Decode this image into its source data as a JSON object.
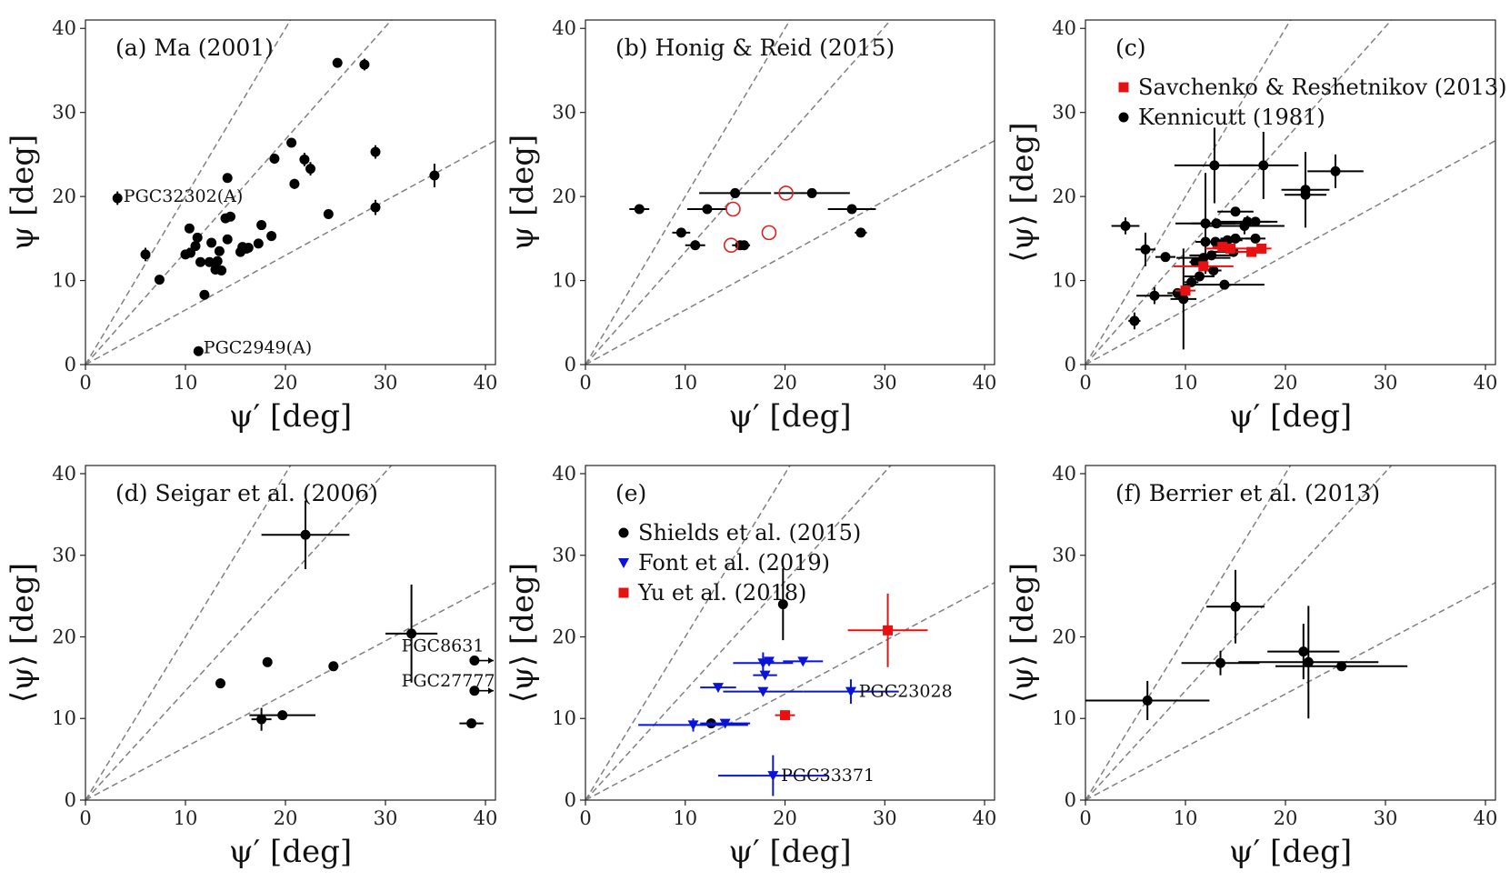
{
  "figure": {
    "xlabel": "ψ′ [deg]",
    "reference_lines": "dashed gray lines through the origin"
  },
  "chart_data": [
    {
      "type": "scatter",
      "title": "(a) Ma (2001)",
      "xlabel": "ψ′ [deg]",
      "ylabel": "ψ [deg]",
      "xlim": [
        0,
        41
      ],
      "ylim": [
        0,
        41
      ],
      "xticks": [
        0,
        10,
        20,
        30,
        40
      ],
      "yticks": [
        0,
        10,
        20,
        30,
        40
      ],
      "ref_slopes": [
        2.0,
        1.34,
        0.65
      ],
      "series": [
        {
          "name": "Ma (2001)",
          "color": "#000000",
          "marker": "circle",
          "points": [
            {
              "x": 3.2,
              "y": 19.8,
              "yerr": 0.8
            },
            {
              "x": 6.0,
              "y": 13.1,
              "yerr": 0.8
            },
            {
              "x": 7.4,
              "y": 10.1
            },
            {
              "x": 10.0,
              "y": 13.1
            },
            {
              "x": 10.4,
              "y": 16.2
            },
            {
              "x": 10.5,
              "y": 13.3
            },
            {
              "x": 11.0,
              "y": 14.1
            },
            {
              "x": 11.2,
              "y": 15.1
            },
            {
              "x": 11.5,
              "y": 12.2
            },
            {
              "x": 11.3,
              "y": 1.6
            },
            {
              "x": 11.9,
              "y": 8.3
            },
            {
              "x": 12.4,
              "y": 12.2
            },
            {
              "x": 12.6,
              "y": 14.5
            },
            {
              "x": 13.0,
              "y": 11.3
            },
            {
              "x": 13.2,
              "y": 12.3
            },
            {
              "x": 13.4,
              "y": 13.5
            },
            {
              "x": 13.6,
              "y": 11.2
            },
            {
              "x": 14.0,
              "y": 17.4
            },
            {
              "x": 14.2,
              "y": 22.2
            },
            {
              "x": 14.2,
              "y": 14.9
            },
            {
              "x": 14.5,
              "y": 17.6
            },
            {
              "x": 15.5,
              "y": 13.4
            },
            {
              "x": 15.7,
              "y": 14.0
            },
            {
              "x": 16.1,
              "y": 13.8
            },
            {
              "x": 16.3,
              "y": 13.9
            },
            {
              "x": 17.3,
              "y": 14.4
            },
            {
              "x": 17.6,
              "y": 16.6
            },
            {
              "x": 18.6,
              "y": 15.3,
              "yerr": 0.6
            },
            {
              "x": 18.9,
              "y": 24.5,
              "yerr": 0.6
            },
            {
              "x": 20.6,
              "y": 26.4
            },
            {
              "x": 20.9,
              "y": 21.5,
              "yerr": 0.6
            },
            {
              "x": 21.9,
              "y": 24.4,
              "yerr": 0.8
            },
            {
              "x": 22.5,
              "y": 23.3,
              "yerr": 0.8
            },
            {
              "x": 24.3,
              "y": 17.9
            },
            {
              "x": 25.2,
              "y": 35.9
            },
            {
              "x": 27.9,
              "y": 35.7,
              "yerr": 0.7
            },
            {
              "x": 29.0,
              "y": 25.3,
              "yerr": 0.8
            },
            {
              "x": 29.0,
              "y": 18.7,
              "yerr": 0.9
            },
            {
              "x": 34.9,
              "y": 22.5,
              "yerr": 1.4
            }
          ]
        }
      ],
      "annotations": [
        {
          "text": "PGC32302(A)",
          "x": 3.8,
          "y": 20.1
        },
        {
          "text": "PGC2949(A)",
          "x": 11.8,
          "y": 2.1
        }
      ]
    },
    {
      "type": "scatter",
      "title": "(b) Honig & Reid (2015)",
      "xlabel": "ψ′ [deg]",
      "ylabel": "ψ [deg]",
      "xlim": [
        0,
        41
      ],
      "ylim": [
        0,
        41
      ],
      "xticks": [
        0,
        10,
        20,
        30,
        40
      ],
      "yticks": [
        0,
        10,
        20,
        30,
        40
      ],
      "ref_slopes": [
        2.0,
        1.34,
        0.65
      ],
      "series": [
        {
          "name": "filled",
          "color": "#000000",
          "marker": "circle",
          "points": [
            {
              "x": 5.4,
              "y": 18.5,
              "xerr": 1.0
            },
            {
              "x": 9.6,
              "y": 15.7,
              "xerr": 0.9
            },
            {
              "x": 11.0,
              "y": 14.2,
              "xerr": 1.0
            },
            {
              "x": 12.2,
              "y": 18.5,
              "xerr": 2.0
            },
            {
              "x": 15.0,
              "y": 20.4,
              "xerr": 3.6
            },
            {
              "x": 15.5,
              "y": 14.2,
              "xerr": 0.8
            },
            {
              "x": 15.9,
              "y": 14.2,
              "xerr": 0.6
            },
            {
              "x": 22.7,
              "y": 20.4,
              "xerr": 3.8
            },
            {
              "x": 26.7,
              "y": 18.5,
              "xerr": 2.4
            },
            {
              "x": 27.6,
              "y": 15.7,
              "xerr": 0.6
            }
          ]
        },
        {
          "name": "open",
          "color": "#e02020",
          "marker": "open-circle",
          "points": [
            {
              "x": 14.6,
              "y": 14.2
            },
            {
              "x": 14.8,
              "y": 18.5
            },
            {
              "x": 18.4,
              "y": 15.7
            },
            {
              "x": 20.1,
              "y": 20.4
            }
          ]
        }
      ],
      "annotations": []
    },
    {
      "type": "scatter",
      "title": "(c)",
      "xlabel": "ψ′ [deg]",
      "ylabel": "⟨ψ⟩ [deg]",
      "xlim": [
        0,
        41
      ],
      "ylim": [
        0,
        41
      ],
      "xticks": [
        0,
        10,
        20,
        30,
        40
      ],
      "yticks": [
        0,
        10,
        20,
        30,
        40
      ],
      "ref_slopes": [
        2.0,
        1.34,
        0.65
      ],
      "legend": [
        {
          "label": "Savchenko & Reshetnikov (2013)",
          "color": "#e81010",
          "marker": "square"
        },
        {
          "label": "Kennicutt (1981)",
          "color": "#000000",
          "marker": "circle"
        }
      ],
      "series": [
        {
          "name": "Kennicutt (1981)",
          "color": "#000000",
          "marker": "circle",
          "points": [
            {
              "x": 4.0,
              "y": 16.5,
              "xerr": 1.4,
              "yerr": 1.0
            },
            {
              "x": 4.9,
              "y": 5.2,
              "xerr": 0.6,
              "yerr": 1.0
            },
            {
              "x": 6.0,
              "y": 13.7,
              "xerr": 1.0,
              "yerr": 2.0
            },
            {
              "x": 6.9,
              "y": 8.2,
              "xerr": 1.8,
              "yerr": 1.0
            },
            {
              "x": 8.0,
              "y": 12.8,
              "xerr": 1.0
            },
            {
              "x": 9.2,
              "y": 8.5,
              "xerr": 1.0
            },
            {
              "x": 9.8,
              "y": 7.8,
              "xerr": 1.3,
              "yerr": 6.0
            },
            {
              "x": 10.6,
              "y": 9.8,
              "xerr": 0.7
            },
            {
              "x": 11.0,
              "y": 12.2,
              "xerr": 0.6
            },
            {
              "x": 11.4,
              "y": 10.5,
              "xerr": 1.5
            },
            {
              "x": 11.8,
              "y": 12.7,
              "xerr": 2.7
            },
            {
              "x": 12.0,
              "y": 14.6,
              "xerr": 1.0
            },
            {
              "x": 12.0,
              "y": 16.8,
              "xerr": 3.0,
              "yerr": 6.0
            },
            {
              "x": 12.6,
              "y": 13.0,
              "xerr": 2.2
            },
            {
              "x": 12.8,
              "y": 11.2,
              "xerr": 0.8
            },
            {
              "x": 12.9,
              "y": 23.7,
              "xerr": 4.0,
              "yerr": 4.5
            },
            {
              "x": 13.0,
              "y": 14.6,
              "xerr": 2.0
            },
            {
              "x": 13.1,
              "y": 16.8,
              "xerr": 2.5
            },
            {
              "x": 13.9,
              "y": 9.5,
              "xerr": 4.0
            },
            {
              "x": 14.2,
              "y": 14.8,
              "xerr": 1.5
            },
            {
              "x": 14.8,
              "y": 13.4,
              "xerr": 2.5
            },
            {
              "x": 15.0,
              "y": 18.2,
              "xerr": 1.8
            },
            {
              "x": 15.0,
              "y": 15.0,
              "xerr": 1.5
            },
            {
              "x": 15.9,
              "y": 16.5,
              "xerr": 4.0,
              "yerr": 1.0
            },
            {
              "x": 16.2,
              "y": 17.0,
              "xerr": 3.0,
              "yerr": 0.7
            },
            {
              "x": 17.0,
              "y": 17.0,
              "xerr": 1.5
            },
            {
              "x": 17.0,
              "y": 15.0,
              "xerr": 1.0
            },
            {
              "x": 17.8,
              "y": 23.7,
              "xerr": 3.5,
              "yerr": 4.0
            },
            {
              "x": 22.0,
              "y": 20.8,
              "xerr": 2.4,
              "yerr": 4.5
            },
            {
              "x": 22.0,
              "y": 20.2,
              "xerr": 2.1,
              "yerr": 3.8
            },
            {
              "x": 25.0,
              "y": 23.0,
              "xerr": 2.8,
              "yerr": 2.0
            }
          ]
        },
        {
          "name": "Savchenko & Reshetnikov (2013)",
          "color": "#e81010",
          "marker": "square",
          "points": [
            {
              "x": 10.0,
              "y": 8.8,
              "xerr": 1.0
            },
            {
              "x": 11.8,
              "y": 11.7,
              "xerr": 3.0
            },
            {
              "x": 13.7,
              "y": 14.0,
              "xerr": 1.0
            },
            {
              "x": 14.5,
              "y": 13.8,
              "xerr": 2.5
            },
            {
              "x": 16.6,
              "y": 13.4,
              "xerr": 1.5
            },
            {
              "x": 17.6,
              "y": 13.8,
              "xerr": 1.0
            }
          ]
        }
      ],
      "annotations": []
    },
    {
      "type": "scatter",
      "title": "(d) Seigar et al. (2006)",
      "xlabel": "ψ′ [deg]",
      "ylabel": "⟨ψ⟩ [deg]",
      "xlim": [
        0,
        41
      ],
      "ylim": [
        0,
        41
      ],
      "xticks": [
        0,
        10,
        20,
        30,
        40
      ],
      "yticks": [
        0,
        10,
        20,
        30,
        40
      ],
      "ref_slopes": [
        2.0,
        1.34,
        0.65
      ],
      "series": [
        {
          "name": "Seigar et al. (2006)",
          "color": "#000000",
          "marker": "circle",
          "points": [
            {
              "x": 13.5,
              "y": 14.3,
              "yerr": 0.6
            },
            {
              "x": 17.6,
              "y": 9.9,
              "xerr": 1.0,
              "yerr": 1.4
            },
            {
              "x": 18.2,
              "y": 16.9
            },
            {
              "x": 19.7,
              "y": 10.4,
              "xerr": 3.3
            },
            {
              "x": 22.0,
              "y": 32.5,
              "xerr": 4.4,
              "yerr": 4.2
            },
            {
              "x": 24.8,
              "y": 16.4
            },
            {
              "x": 32.6,
              "y": 20.4,
              "xerr": 2.6,
              "yerr": 6.0
            },
            {
              "x": 38.6,
              "y": 9.4,
              "xerr": 1.2
            },
            {
              "x": 38.9,
              "y": 17.1,
              "arrow_right": true
            },
            {
              "x": 38.9,
              "y": 13.4,
              "arrow_right": true
            }
          ]
        }
      ],
      "annotations": [
        {
          "text": "PGC8631",
          "x": 31.6,
          "y": 19.0
        },
        {
          "text": "PGC27777",
          "x": 31.6,
          "y": 14.7
        }
      ]
    },
    {
      "type": "scatter",
      "title": "(e)",
      "xlabel": "ψ′ [deg]",
      "ylabel": "⟨ψ⟩ [deg]",
      "xlim": [
        0,
        41
      ],
      "ylim": [
        0,
        41
      ],
      "xticks": [
        0,
        10,
        20,
        30,
        40
      ],
      "yticks": [
        0,
        10,
        20,
        30,
        40
      ],
      "ref_slopes": [
        2.0,
        1.34,
        0.65
      ],
      "legend": [
        {
          "label": "Shields et al. (2015)",
          "color": "#000000",
          "marker": "circle"
        },
        {
          "label": "Font et al. (2019)",
          "color": "#0a14d8",
          "marker": "triangle-down"
        },
        {
          "label": "Yu et al. (2018)",
          "color": "#e81010",
          "marker": "square"
        }
      ],
      "series": [
        {
          "name": "Shields et al. (2015)",
          "color": "#000000",
          "marker": "circle",
          "points": [
            {
              "x": 12.6,
              "y": 9.4
            },
            {
              "x": 19.8,
              "y": 24.0,
              "xerr": 0.4,
              "yerr": 4.4
            }
          ]
        },
        {
          "name": "Font et al. (2019)",
          "color": "#0a14d8",
          "marker": "triangle-down",
          "points": [
            {
              "x": 10.8,
              "y": 9.2,
              "xerr": 5.5,
              "yerr": 0.8
            },
            {
              "x": 14.0,
              "y": 9.4,
              "xerr": 2.5
            },
            {
              "x": 13.3,
              "y": 13.8,
              "xerr": 1.8
            },
            {
              "x": 17.8,
              "y": 16.8,
              "xerr": 3.0,
              "yerr": 1.3
            },
            {
              "x": 18.4,
              "y": 17.0,
              "xerr": 0.5
            },
            {
              "x": 18.0,
              "y": 15.3,
              "xerr": 1.2
            },
            {
              "x": 17.8,
              "y": 13.3,
              "xerr": 4.0
            },
            {
              "x": 21.8,
              "y": 17.0,
              "xerr": 2.0
            },
            {
              "x": 26.6,
              "y": 13.3,
              "xerr": 4.8,
              "yerr": 1.5
            },
            {
              "x": 18.8,
              "y": 3.0,
              "xerr": 5.5,
              "yerr": 2.5
            }
          ]
        },
        {
          "name": "Yu et al. (2018)",
          "color": "#e81010",
          "marker": "square",
          "points": [
            {
              "x": 20.0,
              "y": 10.4,
              "xerr": 1.0
            },
            {
              "x": 30.3,
              "y": 20.8,
              "xerr": 4.0,
              "yerr": 4.5
            }
          ]
        }
      ],
      "annotations": [
        {
          "text": "PGC23028",
          "x": 27.4,
          "y": 13.4
        },
        {
          "text": "PGC33371",
          "x": 19.6,
          "y": 3.1
        }
      ]
    },
    {
      "type": "scatter",
      "title": "(f) Berrier et al. (2013)",
      "xlabel": "ψ′ [deg]",
      "ylabel": "⟨ψ⟩ [deg]",
      "xlim": [
        0,
        41
      ],
      "ylim": [
        0,
        41
      ],
      "xticks": [
        0,
        10,
        20,
        30,
        40
      ],
      "yticks": [
        0,
        10,
        20,
        30,
        40
      ],
      "ref_slopes": [
        2.0,
        1.34,
        0.65
      ],
      "series": [
        {
          "name": "Berrier et al. (2013)",
          "color": "#000000",
          "marker": "circle",
          "points": [
            {
              "x": 6.2,
              "y": 12.2,
              "xerr": 6.2,
              "yerr": 2.4
            },
            {
              "x": 13.5,
              "y": 16.8,
              "xerr": 3.9,
              "yerr": 1.5
            },
            {
              "x": 15.0,
              "y": 23.7,
              "xerr": 2.9,
              "yerr": 4.5
            },
            {
              "x": 21.8,
              "y": 18.2,
              "xerr": 3.6,
              "yerr": 3.4
            },
            {
              "x": 22.3,
              "y": 16.9,
              "xerr": 7.0,
              "yerr": 6.9
            },
            {
              "x": 25.6,
              "y": 16.4,
              "xerr": 6.6
            }
          ]
        }
      ],
      "annotations": []
    }
  ]
}
